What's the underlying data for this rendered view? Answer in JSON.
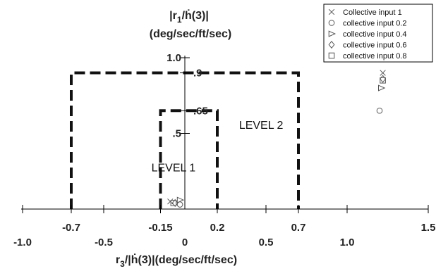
{
  "chart_data": {
    "type": "scatter",
    "xlabel_main": "r",
    "xlabel_sub": "3",
    "xlabel_rest": "/|ḣ(3)|(deg/sec/ft/sec)",
    "ylabel_line1_main": "|r",
    "ylabel_line1_sub": "1",
    "ylabel_line1_rest": "/ḣ(3)|",
    "ylabel_line2": "(deg/sec/ft/sec)",
    "xlim": [
      -1.0,
      1.5
    ],
    "ylim": [
      0,
      1.0
    ],
    "x_ticks_upper": [
      {
        "value": -0.7,
        "label": "-0.7"
      },
      {
        "value": -0.15,
        "label": "-0.15"
      },
      {
        "value": 0.2,
        "label": "0.2"
      },
      {
        "value": 0.7,
        "label": "0.7"
      },
      {
        "value": 1.5,
        "label": "1.5"
      }
    ],
    "x_ticks_lower": [
      {
        "value": -1.0,
        "label": "-1.0"
      },
      {
        "value": -0.5,
        "label": "-0.5"
      },
      {
        "value": 0,
        "label": "0"
      },
      {
        "value": 0.5,
        "label": "0.5"
      },
      {
        "value": 1.0,
        "label": "1.0"
      }
    ],
    "y_ticks": [
      {
        "value": 1.0,
        "label": "1.0"
      },
      {
        "value": 0.9,
        "label": ".9"
      },
      {
        "value": 0.65,
        "label": ".65"
      },
      {
        "value": 0.5,
        "label": ".5"
      }
    ],
    "regions": [
      {
        "label": "LEVEL 1",
        "x": [
          -0.15,
          0.2
        ],
        "ymax": 0.65,
        "label_at": [
          -0.07,
          0.25
        ]
      },
      {
        "label": "LEVEL 2",
        "x": [
          -0.7,
          0.7
        ],
        "ymax": 0.9,
        "label_at": [
          0.47,
          0.53
        ]
      }
    ],
    "series": [
      {
        "name": "Collective input 1",
        "marker": "x",
        "points": [
          [
            -0.09,
            0.05
          ],
          [
            1.22,
            0.9
          ]
        ]
      },
      {
        "name": "collective input 0.2",
        "marker": "circle",
        "points": [
          [
            -0.03,
            0.03
          ],
          [
            1.2,
            0.65
          ]
        ]
      },
      {
        "name": "collective input 0.4",
        "marker": "triangle-right",
        "points": [
          [
            -0.03,
            0.06
          ],
          [
            1.21,
            0.8
          ]
        ]
      },
      {
        "name": "collective input 0.6",
        "marker": "diamond",
        "points": [
          [
            -0.06,
            0.04
          ],
          [
            1.22,
            0.86
          ]
        ]
      },
      {
        "name": "collective input 0.8",
        "marker": "square",
        "points": [
          [
            -0.07,
            0.04
          ],
          [
            1.22,
            0.85
          ]
        ]
      }
    ],
    "legend_position": "top-right",
    "grid": false
  }
}
